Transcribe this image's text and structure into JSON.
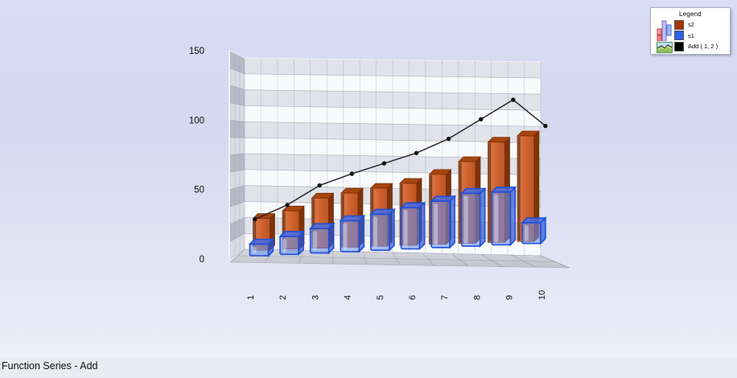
{
  "footer": {
    "title": "Function Series - Add"
  },
  "legend": {
    "title": "Legend",
    "icons": [
      "bar-chart-icon",
      "area-chart-icon"
    ],
    "items": [
      {
        "label": "s2",
        "color": "#a63508",
        "series_type": "bar"
      },
      {
        "label": "s1",
        "color": "#2b62e8",
        "series_type": "bar"
      },
      {
        "label": "Add ( 1, 2 )",
        "color": "#000000",
        "series_type": "line"
      }
    ]
  },
  "chart_data": {
    "type": "bar",
    "subtype": "3d-bar-and-line-combo",
    "title": "Function Series - Add",
    "categories": [
      "1",
      "2",
      "3",
      "4",
      "5",
      "6",
      "7",
      "8",
      "9",
      "10"
    ],
    "series": [
      {
        "name": "s2",
        "type": "bar",
        "color": "#cf6130",
        "values": [
          24,
          29,
          38,
          41,
          44,
          47,
          53,
          62,
          76,
          80
        ]
      },
      {
        "name": "s1",
        "type": "bar",
        "color": "#4a7ce8",
        "values": [
          9,
          14,
          19,
          24,
          28,
          32,
          36,
          41,
          41,
          16
        ]
      },
      {
        "name": "Add ( 1, 2 )",
        "type": "line",
        "color": "#000000",
        "values": [
          33,
          43,
          57,
          65,
          72,
          79,
          89,
          103,
          117,
          96
        ]
      }
    ],
    "xlabel": "",
    "ylabel": "",
    "ylim": [
      0,
      150
    ],
    "yticks": [
      0,
      50,
      100,
      150
    ],
    "x_tick_rotation": -90,
    "grid": true,
    "wall_band_interval": 12.5,
    "legend_position": "top-right"
  }
}
